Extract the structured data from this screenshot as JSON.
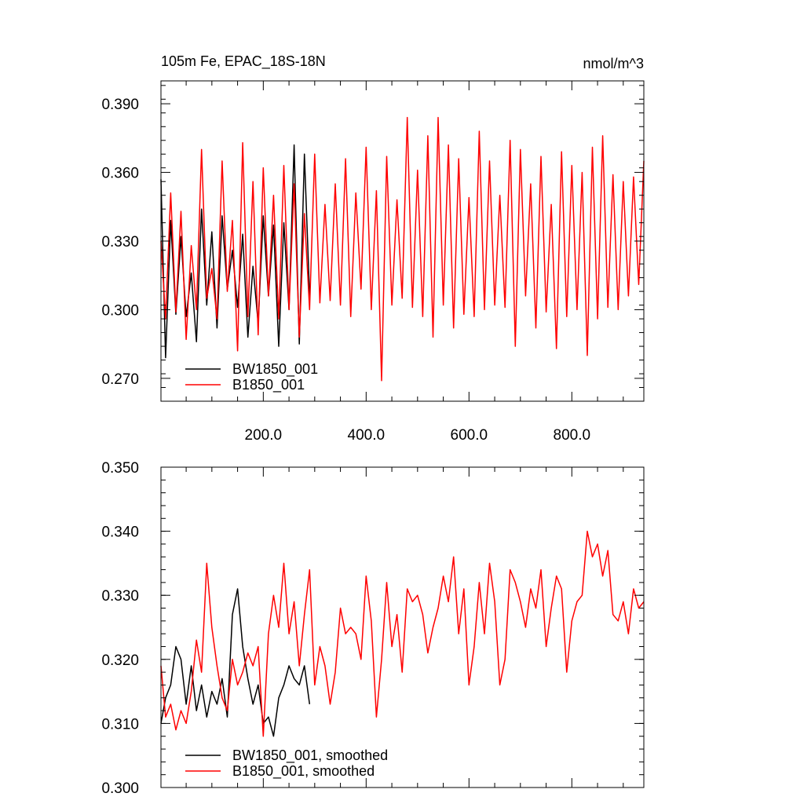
{
  "colors": {
    "BW1850_001": "#000000",
    "B1850_001": "#ff0000",
    "background": "#ffffff"
  },
  "chart_data": [
    {
      "type": "line",
      "title": "105m Fe, EPAC_18S-18N",
      "units": "nmol/m^3",
      "xlim": [
        1,
        940
      ],
      "ylim": [
        0.26,
        0.4
      ],
      "x_ticks": [
        200,
        400,
        600,
        800
      ],
      "x_tick_labels": [
        "200.0",
        "400.0",
        "600.0",
        "800.0"
      ],
      "y_ticks": [
        0.27,
        0.3,
        0.33,
        0.36,
        0.39
      ],
      "y_tick_labels": [
        "0.270",
        "0.300",
        "0.330",
        "0.360",
        "0.390"
      ],
      "grid": false,
      "legend_position": "bottom-left",
      "series": [
        {
          "name": "BW1850_001",
          "color": "#000000",
          "x": [
            1,
            10,
            20,
            30,
            40,
            50,
            60,
            70,
            80,
            90,
            100,
            110,
            120,
            130,
            140,
            150,
            160,
            170,
            180,
            190,
            200,
            210,
            220,
            230,
            240,
            250,
            260,
            270,
            280,
            290
          ],
          "y": [
            0.357,
            0.279,
            0.339,
            0.298,
            0.332,
            0.297,
            0.316,
            0.286,
            0.344,
            0.302,
            0.334,
            0.292,
            0.341,
            0.309,
            0.326,
            0.301,
            0.333,
            0.288,
            0.319,
            0.294,
            0.341,
            0.306,
            0.337,
            0.284,
            0.338,
            0.3,
            0.372,
            0.285,
            0.368,
            0.306
          ]
        },
        {
          "name": "B1850_001",
          "color": "#ff0000",
          "x": [
            1,
            10,
            20,
            30,
            40,
            50,
            60,
            70,
            80,
            90,
            100,
            110,
            120,
            130,
            140,
            150,
            160,
            170,
            180,
            190,
            200,
            210,
            220,
            230,
            240,
            250,
            260,
            270,
            280,
            290,
            300,
            310,
            320,
            330,
            340,
            350,
            360,
            370,
            380,
            390,
            400,
            410,
            420,
            430,
            440,
            450,
            460,
            470,
            480,
            490,
            500,
            510,
            520,
            530,
            540,
            550,
            560,
            570,
            580,
            590,
            600,
            610,
            620,
            630,
            640,
            650,
            660,
            670,
            680,
            690,
            700,
            710,
            720,
            730,
            740,
            750,
            760,
            770,
            780,
            790,
            800,
            810,
            820,
            830,
            840,
            850,
            860,
            870,
            880,
            890,
            900,
            910,
            920,
            930,
            940
          ],
          "y": [
            0.33,
            0.296,
            0.351,
            0.299,
            0.343,
            0.287,
            0.328,
            0.3,
            0.37,
            0.305,
            0.318,
            0.296,
            0.365,
            0.308,
            0.339,
            0.282,
            0.373,
            0.297,
            0.356,
            0.289,
            0.362,
            0.306,
            0.35,
            0.296,
            0.363,
            0.3,
            0.355,
            0.288,
            0.342,
            0.3,
            0.368,
            0.303,
            0.346,
            0.304,
            0.355,
            0.302,
            0.366,
            0.297,
            0.351,
            0.309,
            0.371,
            0.3,
            0.352,
            0.269,
            0.367,
            0.302,
            0.348,
            0.305,
            0.384,
            0.301,
            0.361,
            0.297,
            0.376,
            0.288,
            0.384,
            0.302,
            0.372,
            0.292,
            0.366,
            0.298,
            0.349,
            0.297,
            0.378,
            0.3,
            0.365,
            0.302,
            0.35,
            0.301,
            0.374,
            0.284,
            0.37,
            0.306,
            0.355,
            0.292,
            0.367,
            0.299,
            0.346,
            0.283,
            0.369,
            0.297,
            0.363,
            0.3,
            0.36,
            0.28,
            0.371,
            0.296,
            0.376,
            0.301,
            0.359,
            0.3,
            0.356,
            0.306,
            0.358,
            0.311,
            0.365
          ]
        }
      ]
    },
    {
      "type": "line",
      "title": "",
      "xlim": [
        1,
        940
      ],
      "ylim": [
        0.3,
        0.35
      ],
      "x_ticks": [
        200,
        400,
        600,
        800
      ],
      "x_tick_labels": [],
      "y_ticks": [
        0.3,
        0.31,
        0.32,
        0.33,
        0.34,
        0.35
      ],
      "y_tick_labels": [
        "0.300",
        "0.310",
        "0.320",
        "0.330",
        "0.340",
        "0.350"
      ],
      "grid": false,
      "legend_position": "bottom-left",
      "series": [
        {
          "name": "BW1850_001, smoothed",
          "color": "#000000",
          "x": [
            1,
            10,
            20,
            30,
            40,
            50,
            60,
            70,
            80,
            90,
            100,
            110,
            120,
            130,
            140,
            150,
            160,
            170,
            180,
            190,
            200,
            210,
            220,
            230,
            240,
            250,
            260,
            270,
            280,
            290
          ],
          "y": [
            0.31,
            0.314,
            0.316,
            0.322,
            0.32,
            0.313,
            0.319,
            0.312,
            0.316,
            0.311,
            0.315,
            0.313,
            0.317,
            0.311,
            0.327,
            0.331,
            0.322,
            0.317,
            0.313,
            0.316,
            0.31,
            0.311,
            0.308,
            0.314,
            0.316,
            0.319,
            0.317,
            0.316,
            0.319,
            0.313
          ]
        },
        {
          "name": "B1850_001, smoothed",
          "color": "#ff0000",
          "x": [
            1,
            10,
            20,
            30,
            40,
            50,
            60,
            70,
            80,
            90,
            100,
            110,
            120,
            130,
            140,
            150,
            160,
            170,
            180,
            190,
            200,
            210,
            220,
            230,
            240,
            250,
            260,
            270,
            280,
            290,
            300,
            310,
            320,
            330,
            340,
            350,
            360,
            370,
            380,
            390,
            400,
            410,
            420,
            430,
            440,
            450,
            460,
            470,
            480,
            490,
            500,
            510,
            520,
            530,
            540,
            550,
            560,
            570,
            580,
            590,
            600,
            610,
            620,
            630,
            640,
            650,
            660,
            670,
            680,
            690,
            700,
            710,
            720,
            730,
            740,
            750,
            760,
            770,
            780,
            790,
            800,
            810,
            820,
            830,
            840,
            850,
            860,
            870,
            880,
            890,
            900,
            910,
            920,
            930,
            940
          ],
          "y": [
            0.319,
            0.311,
            0.313,
            0.309,
            0.312,
            0.31,
            0.315,
            0.323,
            0.318,
            0.335,
            0.325,
            0.319,
            0.314,
            0.312,
            0.32,
            0.316,
            0.318,
            0.321,
            0.319,
            0.322,
            0.308,
            0.324,
            0.33,
            0.325,
            0.335,
            0.324,
            0.329,
            0.319,
            0.327,
            0.334,
            0.316,
            0.322,
            0.319,
            0.313,
            0.318,
            0.328,
            0.324,
            0.325,
            0.324,
            0.32,
            0.333,
            0.326,
            0.311,
            0.32,
            0.332,
            0.322,
            0.327,
            0.318,
            0.331,
            0.329,
            0.33,
            0.327,
            0.321,
            0.325,
            0.328,
            0.333,
            0.329,
            0.336,
            0.324,
            0.331,
            0.316,
            0.322,
            0.332,
            0.324,
            0.335,
            0.329,
            0.316,
            0.32,
            0.334,
            0.332,
            0.329,
            0.325,
            0.331,
            0.328,
            0.334,
            0.322,
            0.328,
            0.333,
            0.331,
            0.318,
            0.326,
            0.329,
            0.33,
            0.34,
            0.336,
            0.338,
            0.333,
            0.337,
            0.327,
            0.326,
            0.329,
            0.324,
            0.331,
            0.328,
            0.329
          ]
        }
      ]
    }
  ]
}
